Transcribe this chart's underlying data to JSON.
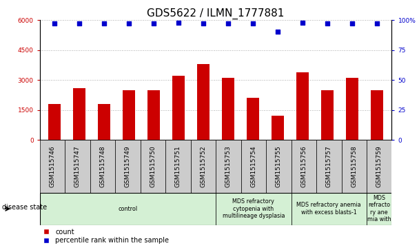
{
  "title": "GDS5622 / ILMN_1777881",
  "samples": [
    "GSM1515746",
    "GSM1515747",
    "GSM1515748",
    "GSM1515749",
    "GSM1515750",
    "GSM1515751",
    "GSM1515752",
    "GSM1515753",
    "GSM1515754",
    "GSM1515755",
    "GSM1515756",
    "GSM1515757",
    "GSM1515758",
    "GSM1515759"
  ],
  "counts": [
    1800,
    2600,
    1800,
    2500,
    2500,
    3200,
    3800,
    3100,
    2100,
    1200,
    3400,
    2500,
    3100,
    2500
  ],
  "percentile_ranks": [
    97,
    97,
    97,
    97,
    97,
    98,
    97,
    97,
    97,
    90,
    98,
    97,
    97,
    97
  ],
  "ylim_left": [
    0,
    6000
  ],
  "ylim_right": [
    0,
    100
  ],
  "yticks_left": [
    0,
    1500,
    3000,
    4500,
    6000
  ],
  "yticks_right": [
    0,
    25,
    50,
    75,
    100
  ],
  "bar_color": "#cc0000",
  "dot_color": "#0000cc",
  "grid_color": "#aaaaaa",
  "sample_box_color": "#cccccc",
  "disease_group_color": "#d4f0d4",
  "disease_groups": [
    {
      "label": "control",
      "start": 0,
      "end": 7
    },
    {
      "label": "MDS refractory\ncytopenia with\nmultilineage dysplasia",
      "start": 7,
      "end": 10
    },
    {
      "label": "MDS refractory anemia\nwith excess blasts-1",
      "start": 10,
      "end": 13
    },
    {
      "label": "MDS\nrefracto\nry ane\nmia with",
      "start": 13,
      "end": 14
    }
  ],
  "disease_state_label": "disease state",
  "legend_count_label": "count",
  "legend_percentile_label": "percentile rank within the sample",
  "bar_width": 0.5,
  "tick_label_fontsize": 6.5,
  "title_fontsize": 11,
  "legend_fontsize": 7,
  "disease_fontsize": 5.8,
  "sample_fontsize": 6.5
}
